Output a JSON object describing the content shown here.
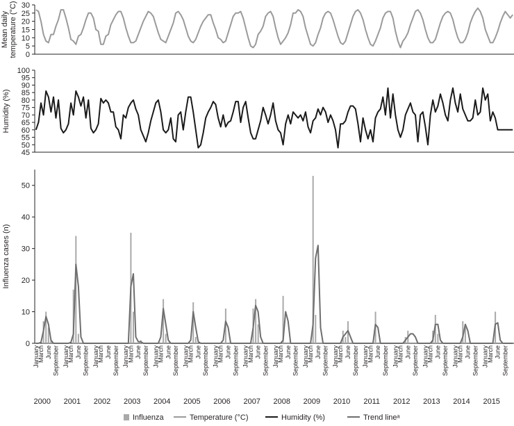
{
  "chart_data": [
    {
      "type": "line",
      "ylabel": "Mean daily temperature (°C)",
      "ylim": [
        0,
        30
      ],
      "yticks": [
        0,
        5,
        10,
        15,
        20,
        25,
        30
      ],
      "series": [
        {
          "name": "Temperature (°C)",
          "color": "#9a9a9a",
          "values": [
            27,
            26,
            20,
            12,
            8,
            7,
            12,
            12,
            17,
            21,
            27,
            27,
            22,
            16,
            9,
            8,
            6,
            11,
            12,
            16,
            21,
            25,
            25,
            22,
            15,
            14,
            6,
            6,
            11,
            12,
            18,
            21,
            24,
            26,
            26,
            22,
            16,
            11,
            7,
            7,
            8,
            12,
            16,
            20,
            23,
            26,
            25,
            23,
            18,
            13,
            9,
            8,
            7,
            11,
            15,
            19,
            25,
            26,
            24,
            21,
            16,
            11,
            8,
            7,
            9,
            13,
            17,
            20,
            22,
            24,
            24,
            19,
            15,
            10,
            9,
            7,
            8,
            13,
            18,
            23,
            25,
            25,
            26,
            22,
            16,
            10,
            5,
            4,
            6,
            12,
            14,
            17,
            23,
            25,
            26,
            23,
            16,
            10,
            6,
            8,
            10,
            13,
            18,
            25,
            25,
            27,
            26,
            23,
            16,
            11,
            6,
            5,
            7,
            12,
            16,
            22,
            25,
            26,
            25,
            21,
            16,
            11,
            7,
            6,
            8,
            13,
            18,
            23,
            26,
            27,
            25,
            21,
            15,
            10,
            6,
            5,
            8,
            12,
            16,
            22,
            25,
            26,
            26,
            22,
            14,
            8,
            4,
            8,
            10,
            13,
            18,
            22,
            26,
            27,
            25,
            21,
            15,
            10,
            7,
            7,
            9,
            14,
            19,
            23,
            25,
            26,
            25,
            21,
            15,
            10,
            7,
            7,
            9,
            13,
            19,
            23,
            26,
            28,
            26,
            22,
            15,
            11,
            7,
            7,
            10,
            14,
            19,
            23,
            26,
            24,
            22,
            24
          ]
        }
      ]
    },
    {
      "type": "line",
      "ylabel": "Humidity (%)",
      "ylim": [
        45,
        100
      ],
      "yticks": [
        45,
        50,
        55,
        60,
        65,
        70,
        75,
        80,
        85,
        90,
        95,
        100
      ],
      "series": [
        {
          "name": "Humidity (%)",
          "color": "#1a1a1a",
          "values": [
            60,
            65,
            78,
            70,
            86,
            82,
            72,
            82,
            68,
            80,
            61,
            58,
            60,
            64,
            78,
            70,
            86,
            82,
            76,
            82,
            68,
            80,
            61,
            58,
            60,
            64,
            81,
            78,
            80,
            78,
            72,
            72,
            62,
            60,
            54,
            70,
            68,
            75,
            78,
            80,
            74,
            70,
            60,
            56,
            52,
            58,
            66,
            72,
            78,
            80,
            72,
            60,
            58,
            60,
            68,
            54,
            52,
            70,
            72,
            60,
            72,
            82,
            82,
            72,
            60,
            48,
            50,
            58,
            68,
            72,
            75,
            79,
            77,
            68,
            62,
            70,
            62,
            65,
            66,
            72,
            79,
            79,
            65,
            75,
            79,
            68,
            58,
            54,
            54,
            60,
            66,
            75,
            70,
            64,
            70,
            78,
            66,
            60,
            58,
            50,
            64,
            70,
            64,
            72,
            70,
            68,
            70,
            66,
            72,
            62,
            58,
            66,
            68,
            74,
            70,
            75,
            72,
            65,
            70,
            66,
            60,
            48,
            64,
            64,
            66,
            72,
            76,
            76,
            74,
            64,
            52,
            68,
            60,
            54,
            60,
            52,
            68,
            72,
            74,
            82,
            70,
            88,
            68,
            84,
            70,
            60,
            55,
            60,
            70,
            74,
            78,
            72,
            70,
            52,
            70,
            72,
            62,
            50,
            70,
            80,
            72,
            76,
            84,
            78,
            70,
            66,
            80,
            88,
            78,
            72,
            84,
            74,
            70,
            66,
            66,
            68,
            80,
            70,
            72,
            88,
            80,
            84,
            66,
            72,
            68,
            60,
            60,
            60,
            60,
            60,
            60,
            60
          ]
        }
      ]
    },
    {
      "type": "bar",
      "ylabel": "Influenza cases (n)",
      "ylim": [
        0,
        55
      ],
      "yticks": [
        0,
        10,
        20,
        30,
        40,
        50
      ],
      "month_ticks": [
        "January",
        "March",
        "June",
        "September"
      ],
      "years": [
        "2000",
        "2001",
        "2002",
        "2003",
        "2004",
        "2005",
        "2006",
        "2007",
        "2008",
        "2009",
        "2010",
        "2011",
        "2012",
        "2013",
        "2014",
        "2015"
      ],
      "legend": {
        "position": "bottom",
        "entries": [
          {
            "label": "Influenza",
            "kind": "bar",
            "color": "#a9a9a9"
          },
          {
            "label": "Temperature (°C)",
            "kind": "line",
            "color": "#9a9a9a"
          },
          {
            "label": "Humidity (%)",
            "kind": "line",
            "color": "#1a1a1a"
          },
          {
            "label": "Trend lineᵃ",
            "kind": "line",
            "color": "#6e6e6e"
          }
        ]
      },
      "series": [
        {
          "name": "Influenza",
          "color": "#a9a9a9",
          "values": [
            0,
            0,
            0,
            7,
            10,
            5,
            1,
            0,
            0,
            0,
            0,
            0,
            0,
            0,
            0,
            17,
            34,
            3,
            0,
            0,
            0,
            0,
            0,
            0,
            0,
            0,
            0,
            0,
            0,
            0,
            0,
            0,
            0,
            0,
            0,
            0,
            0,
            0,
            35,
            10,
            0,
            0,
            1,
            0,
            0,
            0,
            0,
            0,
            0,
            0,
            0,
            14,
            3,
            0,
            0,
            0,
            0,
            0,
            0,
            0,
            0,
            0,
            0,
            13,
            2,
            0,
            0,
            0,
            0,
            0,
            0,
            0,
            0,
            0,
            0,
            0,
            11,
            0,
            0,
            0,
            0,
            0,
            0,
            0,
            0,
            0,
            0,
            11,
            14,
            6,
            0,
            0,
            0,
            0,
            0,
            0,
            0,
            0,
            0,
            15,
            0,
            0,
            0,
            0,
            0,
            0,
            0,
            0,
            0,
            0,
            0,
            53,
            9,
            0,
            0,
            0,
            0,
            0,
            0,
            0,
            0,
            0,
            0,
            4,
            2,
            7,
            0,
            0,
            0,
            0,
            0,
            0,
            0,
            0,
            0,
            0,
            10,
            0,
            0,
            0,
            0,
            0,
            0,
            0,
            0,
            0,
            0,
            0,
            2,
            4,
            0,
            0,
            0,
            0,
            0,
            0,
            0,
            0,
            0,
            4,
            9,
            3,
            0,
            0,
            0,
            0,
            0,
            0,
            0,
            0,
            0,
            7,
            5,
            0,
            0,
            0,
            0,
            0,
            0,
            0,
            0,
            0,
            0,
            0,
            10,
            0,
            0,
            0,
            0,
            0,
            0,
            0
          ]
        },
        {
          "name": "Trend lineᵃ",
          "color": "#6e6e6e",
          "values": [
            0,
            0,
            0.3,
            4,
            8.5,
            6,
            1,
            0,
            0,
            0,
            0,
            0,
            0,
            0,
            0.3,
            3,
            25,
            18,
            2,
            0,
            0,
            0,
            0,
            0,
            0,
            0,
            0,
            0,
            0,
            0,
            0,
            0,
            0,
            0,
            0,
            0,
            0,
            0,
            18,
            22,
            2,
            0.5,
            0.5,
            0,
            0,
            0,
            0,
            0,
            0,
            0,
            2,
            11,
            6,
            1,
            0,
            0,
            0,
            0,
            0,
            0,
            0,
            0,
            1,
            10,
            5,
            0.5,
            0,
            0,
            0,
            0,
            0,
            0,
            0,
            0,
            0,
            1,
            7,
            5,
            0,
            0,
            0,
            0,
            0,
            0,
            0,
            0,
            0,
            5,
            12,
            10,
            2,
            0,
            0,
            0,
            0,
            0,
            0,
            0,
            0,
            1,
            10,
            7,
            0,
            0,
            0,
            0,
            0,
            0,
            0,
            0,
            0,
            6,
            27,
            31,
            5,
            0,
            0,
            0,
            0,
            0,
            0,
            0,
            0,
            2,
            3,
            4,
            2,
            0,
            0,
            0,
            0,
            0,
            0,
            0,
            0,
            0,
            6,
            5,
            0,
            0,
            0,
            0,
            0,
            0,
            0,
            0,
            0,
            0,
            1,
            2,
            3,
            3,
            2,
            0,
            0,
            0,
            0,
            0,
            0,
            1,
            6,
            6,
            1,
            0,
            0,
            0,
            0,
            0,
            0,
            0,
            0,
            2,
            6,
            4,
            0,
            0,
            0,
            0,
            0,
            0,
            0,
            0,
            0,
            0,
            6,
            6.5,
            1,
            0,
            0,
            0,
            0,
            0
          ]
        }
      ]
    }
  ]
}
